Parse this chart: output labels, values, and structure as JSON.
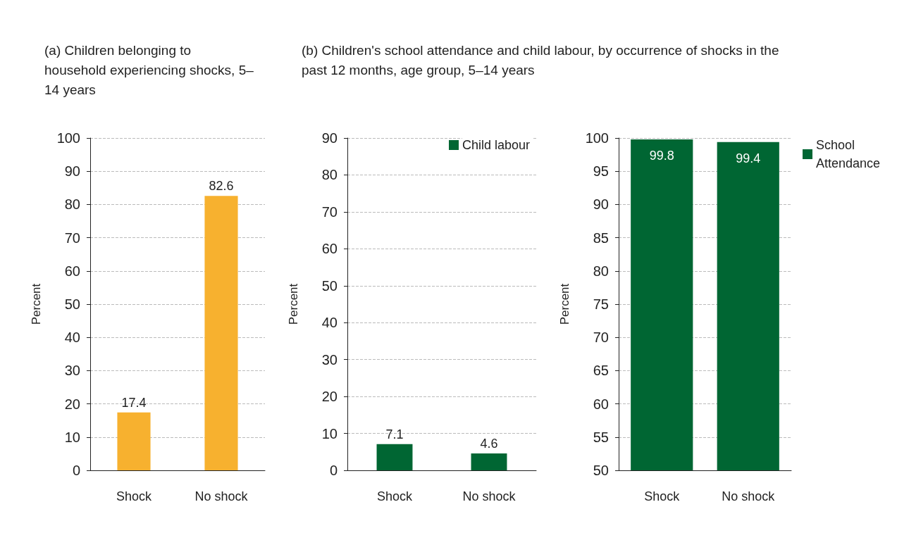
{
  "chart_data": [
    {
      "type": "bar",
      "title": "(a) Children belonging to household experiencing shocks, 5–14 years",
      "ylabel": "Percent",
      "categories": [
        "Shock",
        "No shock"
      ],
      "series": [
        {
          "color": "#f7b12f",
          "values": [
            17.4,
            82.6
          ]
        }
      ],
      "ylim": [
        0,
        100
      ],
      "yticks": [
        0,
        10,
        20,
        30,
        40,
        50,
        60,
        70,
        80,
        90,
        100
      ],
      "grid": "y",
      "data_labels": true,
      "legend": false
    },
    {
      "type": "bar",
      "title": "(b) Children's school attendance and child labour, by occurrence of shocks in the past 12 months, age group, 5–14 years",
      "ylabel": "Percent",
      "categories": [
        "Shock",
        "No shock"
      ],
      "series": [
        {
          "name": "Child labour",
          "color": "#006633",
          "values": [
            7.1,
            4.6
          ]
        }
      ],
      "ylim": [
        0,
        90
      ],
      "yticks": [
        0,
        10,
        20,
        30,
        40,
        50,
        60,
        70,
        80,
        90
      ],
      "grid": "y",
      "data_labels": true,
      "legend": "top right"
    },
    {
      "type": "bar",
      "ylabel": "Percent",
      "categories": [
        "Shock",
        "No shock"
      ],
      "series": [
        {
          "name": "School Attendance",
          "color": "#006633",
          "values": [
            99.8,
            99.4
          ]
        }
      ],
      "ylim": [
        50,
        100
      ],
      "yticks": [
        50,
        55,
        60,
        65,
        70,
        75,
        80,
        85,
        90,
        95,
        100
      ],
      "grid": "y",
      "data_labels": true,
      "legend": "top right"
    }
  ]
}
